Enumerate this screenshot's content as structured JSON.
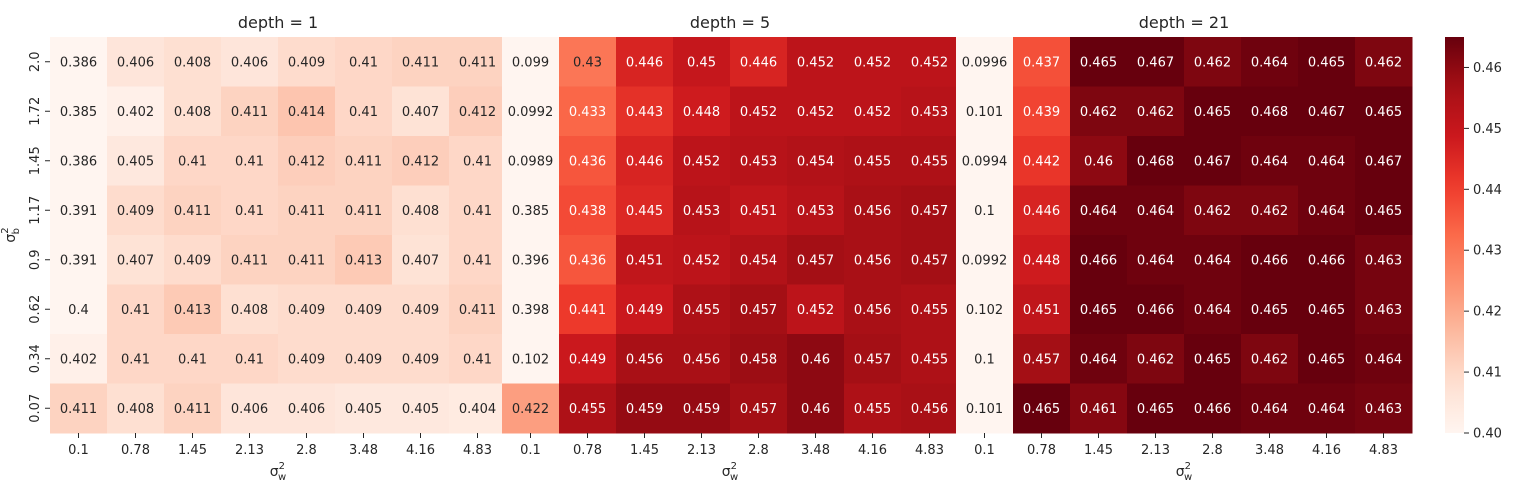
{
  "chart_data": {
    "type": "heatmap",
    "panels": [
      {
        "title": "depth = 1",
        "xlabel": "σ²_w",
        "ylabel": "σ²_b",
        "x": [
          "0.1",
          "0.78",
          "1.45",
          "2.13",
          "2.8",
          "3.48",
          "4.16",
          "4.83"
        ],
        "y": [
          "2.0",
          "1.72",
          "1.45",
          "1.17",
          "0.9",
          "0.62",
          "0.34",
          "0.07"
        ],
        "values": [
          [
            0.386,
            0.406,
            0.408,
            0.406,
            0.409,
            0.41,
            0.411,
            0.411
          ],
          [
            0.385,
            0.402,
            0.408,
            0.411,
            0.414,
            0.41,
            0.407,
            0.412
          ],
          [
            0.386,
            0.405,
            0.41,
            0.41,
            0.412,
            0.411,
            0.412,
            0.41
          ],
          [
            0.391,
            0.409,
            0.411,
            0.41,
            0.411,
            0.411,
            0.408,
            0.41
          ],
          [
            0.391,
            0.407,
            0.409,
            0.411,
            0.411,
            0.413,
            0.407,
            0.41
          ],
          [
            0.4,
            0.41,
            0.413,
            0.408,
            0.409,
            0.409,
            0.409,
            0.411
          ],
          [
            0.402,
            0.41,
            0.41,
            0.41,
            0.409,
            0.409,
            0.409,
            0.41
          ],
          [
            0.411,
            0.408,
            0.411,
            0.406,
            0.406,
            0.405,
            0.405,
            0.404
          ]
        ]
      },
      {
        "title": "depth = 5",
        "xlabel": "σ²_w",
        "ylabel": "",
        "x": [
          "0.1",
          "0.78",
          "1.45",
          "2.13",
          "2.8",
          "3.48",
          "4.16",
          "4.83"
        ],
        "y": [
          "2.0",
          "1.72",
          "1.45",
          "1.17",
          "0.9",
          "0.62",
          "0.34",
          "0.07"
        ],
        "values": [
          [
            0.099,
            0.43,
            0.446,
            0.45,
            0.446,
            0.452,
            0.452,
            0.452
          ],
          [
            0.0992,
            0.433,
            0.443,
            0.448,
            0.452,
            0.452,
            0.452,
            0.453
          ],
          [
            0.0989,
            0.436,
            0.446,
            0.452,
            0.453,
            0.454,
            0.455,
            0.455
          ],
          [
            0.385,
            0.438,
            0.445,
            0.453,
            0.451,
            0.453,
            0.456,
            0.457
          ],
          [
            0.396,
            0.436,
            0.451,
            0.452,
            0.454,
            0.457,
            0.456,
            0.457
          ],
          [
            0.398,
            0.441,
            0.449,
            0.455,
            0.457,
            0.452,
            0.456,
            0.455
          ],
          [
            0.102,
            0.449,
            0.456,
            0.456,
            0.458,
            0.46,
            0.457,
            0.455
          ],
          [
            0.422,
            0.455,
            0.459,
            0.459,
            0.457,
            0.46,
            0.455,
            0.456
          ]
        ]
      },
      {
        "title": "depth = 21",
        "xlabel": "σ²_w",
        "ylabel": "",
        "x": [
          "0.1",
          "0.78",
          "1.45",
          "2.13",
          "2.8",
          "3.48",
          "4.16",
          "4.83"
        ],
        "y": [
          "2.0",
          "1.72",
          "1.45",
          "1.17",
          "0.9",
          "0.62",
          "0.34",
          "0.07"
        ],
        "values": [
          [
            0.0996,
            0.437,
            0.465,
            0.467,
            0.462,
            0.464,
            0.465,
            0.462
          ],
          [
            0.101,
            0.439,
            0.462,
            0.462,
            0.465,
            0.468,
            0.467,
            0.465
          ],
          [
            0.0994,
            0.442,
            0.46,
            0.468,
            0.467,
            0.464,
            0.464,
            0.467
          ],
          [
            0.1,
            0.446,
            0.464,
            0.464,
            0.462,
            0.462,
            0.464,
            0.465
          ],
          [
            0.0992,
            0.448,
            0.466,
            0.464,
            0.464,
            0.466,
            0.466,
            0.463
          ],
          [
            0.102,
            0.451,
            0.465,
            0.466,
            0.464,
            0.465,
            0.465,
            0.463
          ],
          [
            0.1,
            0.457,
            0.464,
            0.462,
            0.465,
            0.462,
            0.465,
            0.464
          ],
          [
            0.101,
            0.465,
            0.461,
            0.465,
            0.466,
            0.464,
            0.464,
            0.463
          ]
        ]
      }
    ],
    "colorbar": {
      "colormap": "Reds",
      "range": [
        0.4,
        0.465
      ],
      "ticks": [
        "0.40",
        "0.41",
        "0.42",
        "0.43",
        "0.44",
        "0.45",
        "0.46"
      ]
    }
  }
}
